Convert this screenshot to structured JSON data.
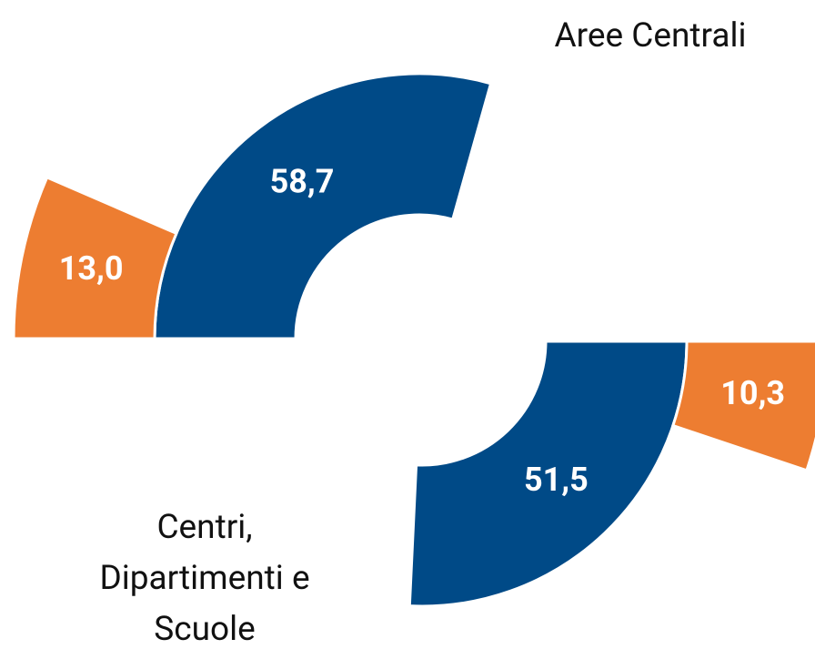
{
  "chart_data": [
    {
      "type": "donut",
      "title": "Aree Centrali",
      "values": [
        58.7,
        13.0
      ],
      "value_labels": [
        "58,7",
        "13,0"
      ],
      "colors": [
        "#004a87",
        "#ed7d31"
      ]
    },
    {
      "type": "donut",
      "title": "Centri, Dipartimenti e Scuole",
      "values": [
        51.5,
        10.3
      ],
      "value_labels": [
        "51,5",
        "10,3"
      ],
      "colors": [
        "#004a87",
        "#ed7d31"
      ]
    }
  ]
}
